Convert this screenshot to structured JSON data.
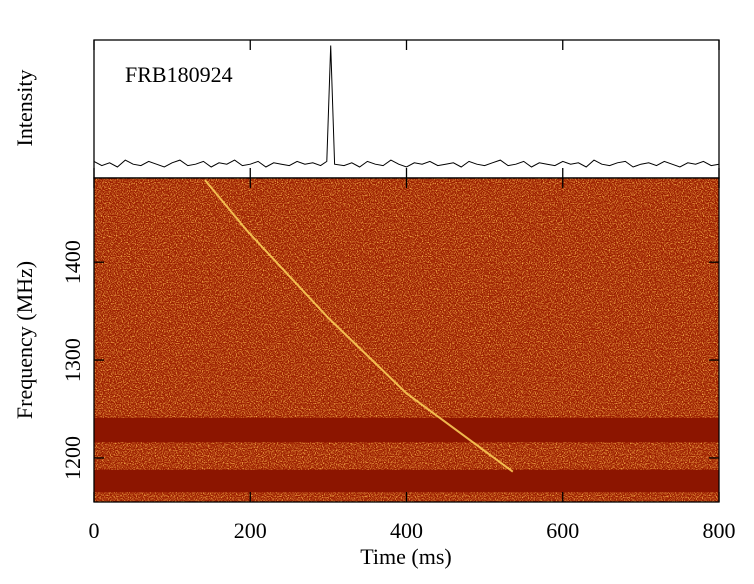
{
  "chart_data": [
    {
      "type": "line",
      "ylabel": "Intensity",
      "annotation": "FRB180924",
      "color": "#000000",
      "xlim": [
        0,
        800
      ],
      "ylim": [
        0,
        1
      ],
      "xticks": [
        0,
        200,
        400,
        600,
        800
      ],
      "x": [
        0,
        10,
        20,
        30,
        40,
        50,
        60,
        70,
        80,
        90,
        100,
        110,
        120,
        130,
        140,
        150,
        160,
        170,
        180,
        190,
        200,
        210,
        220,
        230,
        240,
        250,
        260,
        270,
        280,
        290,
        298,
        303,
        308,
        320,
        330,
        340,
        350,
        360,
        370,
        380,
        390,
        400,
        410,
        420,
        430,
        440,
        450,
        460,
        470,
        480,
        490,
        500,
        510,
        520,
        530,
        540,
        550,
        560,
        570,
        580,
        590,
        600,
        610,
        620,
        630,
        640,
        650,
        660,
        670,
        680,
        690,
        700,
        710,
        720,
        730,
        740,
        750,
        760,
        770,
        780,
        790,
        800
      ],
      "values": [
        0.12,
        0.09,
        0.11,
        0.08,
        0.13,
        0.1,
        0.09,
        0.12,
        0.1,
        0.08,
        0.11,
        0.13,
        0.09,
        0.1,
        0.12,
        0.08,
        0.11,
        0.1,
        0.13,
        0.09,
        0.1,
        0.12,
        0.08,
        0.11,
        0.1,
        0.09,
        0.12,
        0.1,
        0.11,
        0.09,
        0.12,
        0.96,
        0.1,
        0.09,
        0.11,
        0.08,
        0.12,
        0.1,
        0.09,
        0.13,
        0.1,
        0.08,
        0.11,
        0.1,
        0.12,
        0.09,
        0.1,
        0.11,
        0.08,
        0.12,
        0.1,
        0.09,
        0.11,
        0.13,
        0.09,
        0.1,
        0.12,
        0.08,
        0.11,
        0.1,
        0.09,
        0.12,
        0.1,
        0.11,
        0.08,
        0.13,
        0.1,
        0.09,
        0.11,
        0.12,
        0.08,
        0.1,
        0.11,
        0.09,
        0.12,
        0.1,
        0.08,
        0.11,
        0.1,
        0.12,
        0.09,
        0.1
      ]
    },
    {
      "type": "spectrogram",
      "xlabel": "Time (ms)",
      "ylabel": "Frequency (MHz)",
      "background_color": "#9b1c00",
      "mask_color": "#8c1500",
      "sweep_color": "#ffd45a",
      "xlim": [
        0,
        800
      ],
      "ylim": [
        1155,
        1486
      ],
      "xticks": [
        0,
        200,
        400,
        600,
        800
      ],
      "yticks": [
        1200,
        1300,
        1400
      ],
      "sweep": {
        "x": [
          142,
          195,
          300,
          400,
          536
        ],
        "y": [
          1484,
          1433,
          1343,
          1266,
          1186
        ]
      },
      "masked_bands": [
        [
          1216,
          1241
        ],
        [
          1165,
          1188
        ]
      ]
    }
  ]
}
